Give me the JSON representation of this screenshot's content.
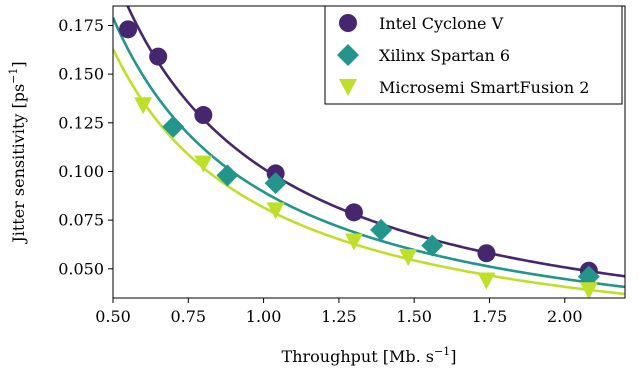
{
  "chart_data": {
    "type": "scatter",
    "title": "",
    "xlabel": "Throughput [Mb. s",
    "xlabel_sup": "−1",
    "xlabel_end": "]",
    "ylabel": "Jitter sensitivity [ps",
    "ylabel_sup": "−1",
    "ylabel_end": "]",
    "xlim": [
      0.5,
      2.2
    ],
    "ylim": [
      0.035,
      0.185
    ],
    "grid": false,
    "legend_position": "top-right",
    "x_ticks": [
      0.5,
      0.75,
      1.0,
      1.25,
      1.5,
      1.75,
      2.0
    ],
    "x_tick_labels": [
      "0.50",
      "0.75",
      "1.00",
      "1.25",
      "1.50",
      "1.75",
      "2.00"
    ],
    "y_ticks": [
      0.05,
      0.075,
      0.1,
      0.125,
      0.15,
      0.175
    ],
    "y_tick_labels": [
      "0.050",
      "0.075",
      "0.100",
      "0.125",
      "0.150",
      "0.175"
    ],
    "series": [
      {
        "name": "Intel Cyclone V",
        "marker": "circle",
        "color": "#46266f",
        "points": [
          [
            0.55,
            0.173
          ],
          [
            0.65,
            0.159
          ],
          [
            0.8,
            0.129
          ],
          [
            1.04,
            0.099
          ],
          [
            1.3,
            0.079
          ],
          [
            1.74,
            0.058
          ],
          [
            2.08,
            0.049
          ]
        ],
        "fit_k": 0.1015
      },
      {
        "name": "Xilinx Spartan 6",
        "marker": "diamond",
        "color": "#23958a",
        "points": [
          [
            0.7,
            0.123
          ],
          [
            0.88,
            0.098
          ],
          [
            1.04,
            0.094
          ],
          [
            1.39,
            0.07
          ],
          [
            1.56,
            0.062
          ],
          [
            2.08,
            0.046
          ]
        ],
        "fit_k": 0.0895
      },
      {
        "name": "Microsemi SmartFusion 2",
        "marker": "triangle-down",
        "color": "#bfe02b",
        "points": [
          [
            0.6,
            0.134
          ],
          [
            0.8,
            0.104
          ],
          [
            1.04,
            0.08
          ],
          [
            1.3,
            0.064
          ],
          [
            1.48,
            0.056
          ],
          [
            1.74,
            0.044
          ],
          [
            2.08,
            0.039
          ]
        ],
        "fit_k": 0.0815
      }
    ]
  }
}
